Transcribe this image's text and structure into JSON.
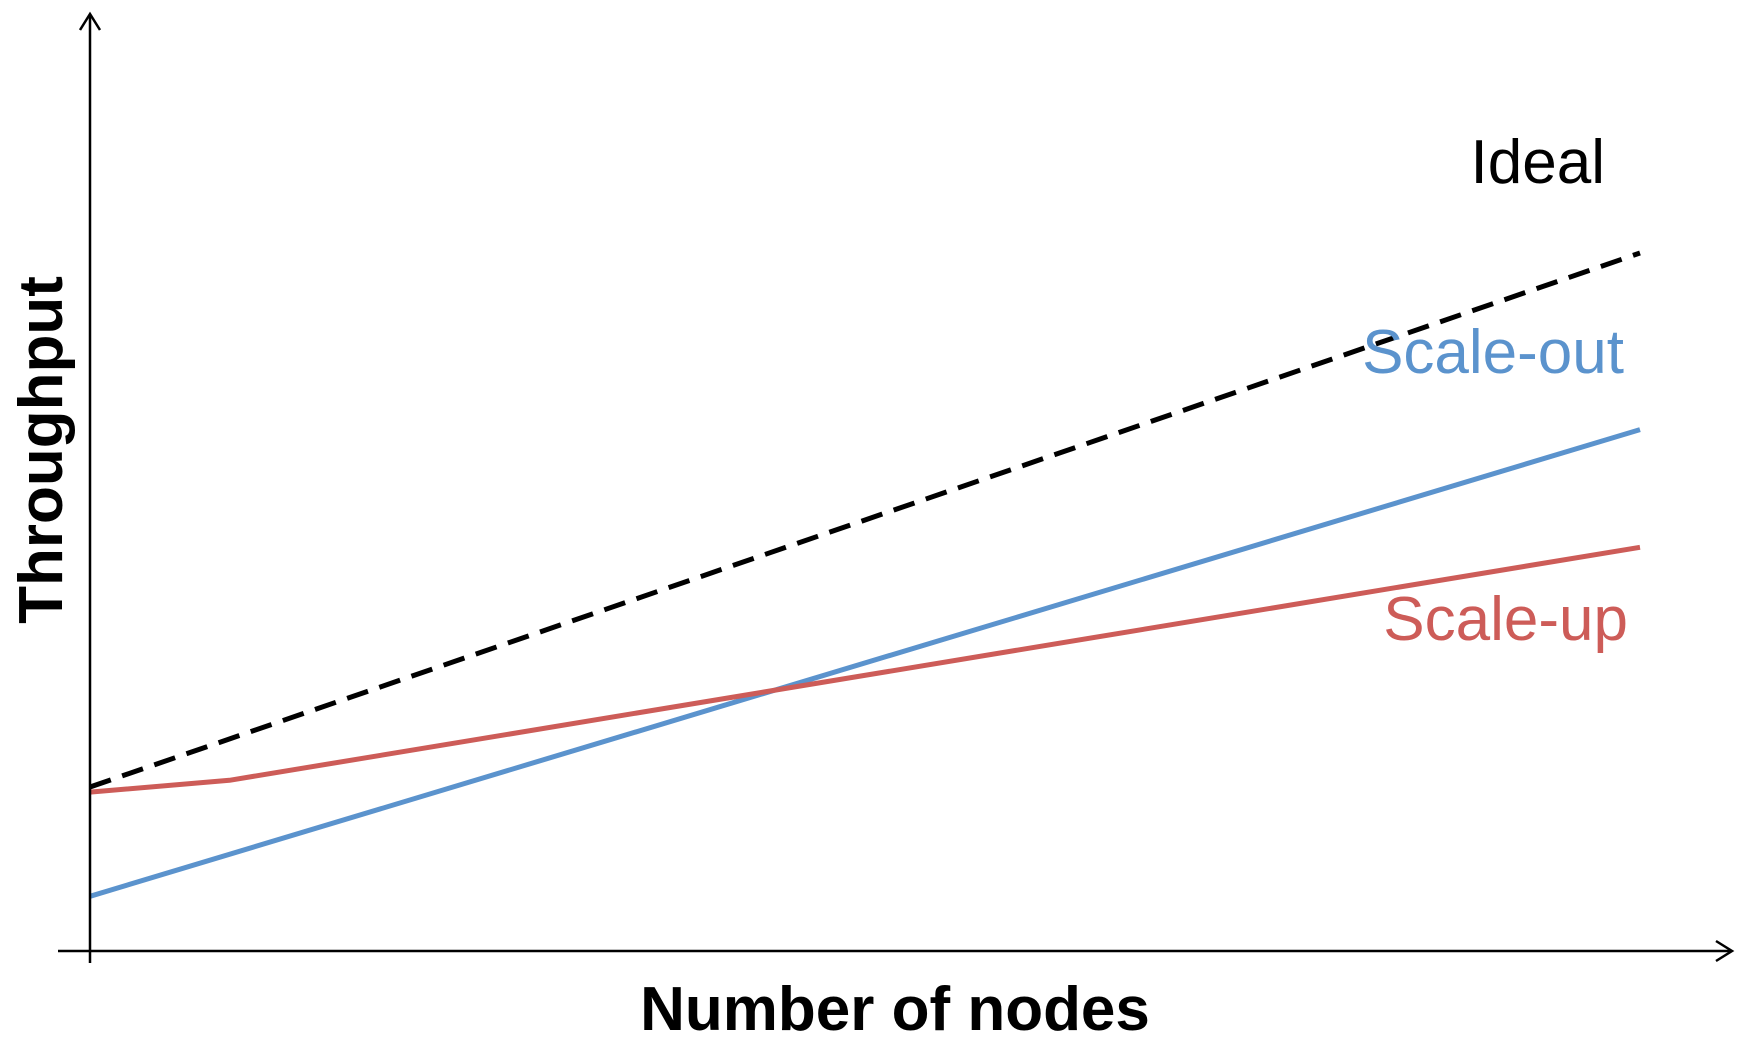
{
  "chart_data": {
    "type": "line",
    "title": "",
    "xlabel": "Number of nodes",
    "ylabel": "Throughput",
    "xlim": [
      0,
      100
    ],
    "ylim": [
      0,
      100
    ],
    "grid": false,
    "ticks": "none",
    "series": [
      {
        "name": "Ideal",
        "color": "#000000",
        "dashed": true,
        "x": [
          0,
          100
        ],
        "y": [
          19.5,
          83.0
        ]
      },
      {
        "name": "Scale-out",
        "color": "#5b93cd",
        "dashed": false,
        "x": [
          0,
          100
        ],
        "y": [
          6.5,
          62.0
        ]
      },
      {
        "name": "Scale-up",
        "color": "#cd5c58",
        "dashed": false,
        "x": [
          0,
          9,
          100
        ],
        "y": [
          18.9,
          20.3,
          48.0
        ]
      }
    ]
  }
}
